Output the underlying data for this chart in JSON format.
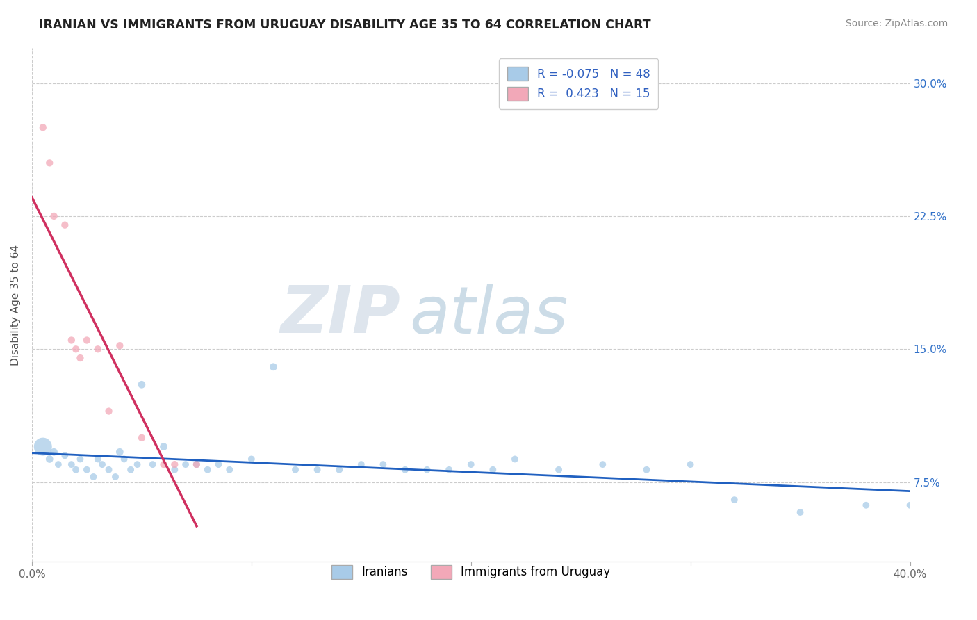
{
  "title": "IRANIAN VS IMMIGRANTS FROM URUGUAY DISABILITY AGE 35 TO 64 CORRELATION CHART",
  "source": "Source: ZipAtlas.com",
  "ylabel": "Disability Age 35 to 64",
  "xlim": [
    0.0,
    0.4
  ],
  "ylim": [
    0.03,
    0.32
  ],
  "x_ticks": [
    0.0,
    0.1,
    0.2,
    0.3,
    0.4
  ],
  "x_tick_labels": [
    "0.0%",
    "",
    "",
    "",
    "40.0%"
  ],
  "y_ticks": [
    0.075,
    0.15,
    0.225,
    0.3
  ],
  "y_tick_labels": [
    "7.5%",
    "15.0%",
    "22.5%",
    "30.0%"
  ],
  "r_iranian": -0.075,
  "n_iranian": 48,
  "r_uruguay": 0.423,
  "n_uruguay": 15,
  "legend_label_iranian": "Iranians",
  "legend_label_uruguay": "Immigrants from Uruguay",
  "color_iranian": "#A8CBE8",
  "color_uruguay": "#F2A8B8",
  "color_iranian_line": "#2060C0",
  "color_uruguay_line": "#D03060",
  "background_color": "#FFFFFF",
  "grid_color": "#CCCCCC",
  "title_color": "#222222",
  "watermark_color": "#D0DCE8",
  "iranian_x": [
    0.005,
    0.008,
    0.01,
    0.012,
    0.015,
    0.018,
    0.02,
    0.022,
    0.025,
    0.028,
    0.03,
    0.032,
    0.035,
    0.038,
    0.04,
    0.042,
    0.045,
    0.048,
    0.05,
    0.055,
    0.06,
    0.065,
    0.07,
    0.075,
    0.08,
    0.085,
    0.09,
    0.1,
    0.11,
    0.12,
    0.13,
    0.14,
    0.15,
    0.16,
    0.17,
    0.18,
    0.19,
    0.2,
    0.21,
    0.22,
    0.24,
    0.26,
    0.28,
    0.3,
    0.32,
    0.35,
    0.38,
    0.4
  ],
  "iranian_y": [
    0.095,
    0.088,
    0.092,
    0.085,
    0.09,
    0.085,
    0.082,
    0.088,
    0.082,
    0.078,
    0.088,
    0.085,
    0.082,
    0.078,
    0.092,
    0.088,
    0.082,
    0.085,
    0.13,
    0.085,
    0.095,
    0.082,
    0.085,
    0.085,
    0.082,
    0.085,
    0.082,
    0.088,
    0.14,
    0.082,
    0.082,
    0.082,
    0.085,
    0.085,
    0.082,
    0.082,
    0.082,
    0.085,
    0.082,
    0.088,
    0.082,
    0.085,
    0.082,
    0.085,
    0.065,
    0.058,
    0.062,
    0.062
  ],
  "iranian_sizes": [
    350,
    60,
    60,
    50,
    50,
    50,
    50,
    50,
    50,
    50,
    50,
    50,
    50,
    50,
    60,
    50,
    50,
    50,
    60,
    50,
    60,
    50,
    50,
    50,
    50,
    50,
    50,
    50,
    60,
    50,
    50,
    50,
    50,
    50,
    50,
    50,
    50,
    50,
    50,
    50,
    50,
    50,
    50,
    50,
    50,
    50,
    50,
    50
  ],
  "uruguay_x": [
    0.005,
    0.008,
    0.01,
    0.015,
    0.018,
    0.02,
    0.022,
    0.025,
    0.03,
    0.035,
    0.04,
    0.05,
    0.06,
    0.065,
    0.075
  ],
  "uruguay_y": [
    0.275,
    0.255,
    0.225,
    0.22,
    0.155,
    0.15,
    0.145,
    0.155,
    0.15,
    0.115,
    0.152,
    0.1,
    0.085,
    0.085,
    0.085
  ],
  "uruguay_sizes": [
    55,
    55,
    55,
    55,
    55,
    55,
    55,
    55,
    55,
    55,
    55,
    55,
    55,
    55,
    55
  ]
}
